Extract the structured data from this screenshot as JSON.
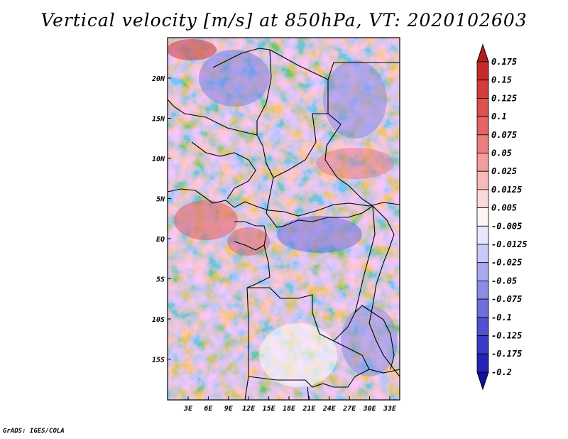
{
  "title": "Vertical velocity [m/s] at 850hPa, VT: 2020102603",
  "footer": "GrADS: IGES/COLA",
  "map": {
    "variable": "Vertical velocity",
    "units": "m/s",
    "level": "850hPa",
    "valid_time": "2020102603",
    "lat_labels": [
      "20N",
      "15N",
      "10N",
      "5N",
      "EQ",
      "5S",
      "10S",
      "15S"
    ],
    "lon_labels": [
      "3E",
      "6E",
      "9E",
      "12E",
      "15E",
      "18E",
      "21E",
      "24E",
      "27E",
      "30E",
      "33E"
    ]
  },
  "colorbar": {
    "labels": [
      "0.175",
      "0.15",
      "0.125",
      "0.1",
      "0.075",
      "0.05",
      "0.025",
      "0.0125",
      "0.005",
      "-0.005",
      "-0.0125",
      "-0.025",
      "-0.05",
      "-0.075",
      "-0.1",
      "-0.125",
      "-0.175",
      "-0.2"
    ],
    "colors": [
      "#b41c1c",
      "#c82a2a",
      "#d23c3c",
      "#dc5050",
      "#e46464",
      "#ec7e7e",
      "#f29c9c",
      "#f7baba",
      "#fbd8d8",
      "#fff4f4",
      "#e6e6ff",
      "#c9c9f5",
      "#a9a9ee",
      "#8c8ce6",
      "#6e6ede",
      "#5050d0",
      "#3a3ac6",
      "#2424b4",
      "#10109c"
    ]
  }
}
